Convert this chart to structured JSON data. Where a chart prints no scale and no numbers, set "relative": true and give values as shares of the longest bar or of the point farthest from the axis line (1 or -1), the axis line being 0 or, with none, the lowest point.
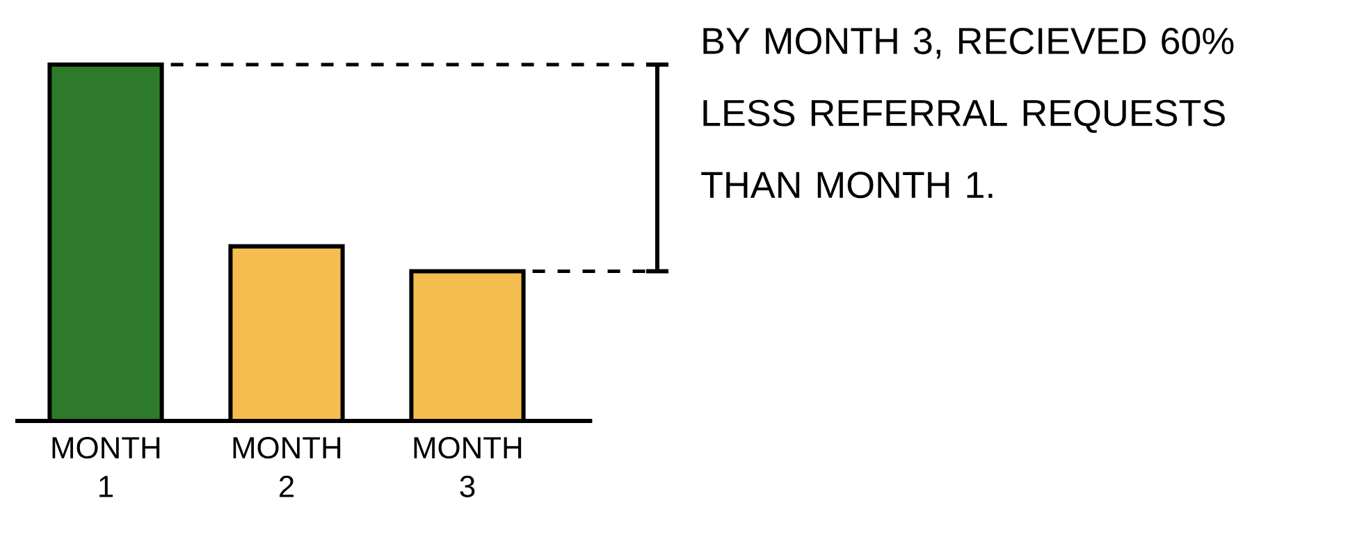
{
  "chart_data": {
    "type": "bar",
    "relative": true,
    "categories": [
      "MONTH 1",
      "MONTH 2",
      "MONTH 3"
    ],
    "values": [
      1,
      0.49,
      0.42
    ],
    "colors": [
      "#2e7a2b",
      "#f3bd4f",
      "#f3bd4f"
    ],
    "ref_lines": [
      {
        "axis": "y",
        "value": 1,
        "line_style": "dashed"
      },
      {
        "axis": "y",
        "value": 0.42,
        "line_style": "dashed"
      }
    ],
    "annotations": [
      "BY MONTH 3, RECIEVED 60% LESS REFERRAL REQUESTS THAN MONTH 1."
    ]
  }
}
